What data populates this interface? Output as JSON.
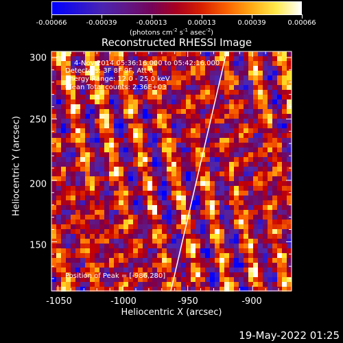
{
  "colorbar": {
    "labels": [
      "-0.00066",
      "-0.00039",
      "-0.00013",
      "0.00013",
      "0.00039",
      "0.00066"
    ],
    "units_text": "(photons cm",
    "units_sup1": "-2",
    "units_mid": " s",
    "units_sup2": "-1",
    "units_mid2": " asec",
    "units_sup3": "-2",
    "units_end": ")"
  },
  "title": "Reconstructed RHESSI Image",
  "info": {
    "time": "4-Nov-2014 05:36:16.000 to 05:42:16.000",
    "detectors": "Detectors: 3F 8F 9F, Att 0",
    "energy": "Energy Range: 12.0 - 25.0 keV",
    "clean": "Clean     Total counts: 2.36E+03",
    "peak": "Position of Peak = [-986,280]"
  },
  "xaxis": {
    "label": "Heliocentric X (arcsec)",
    "ticks": [
      "-1050",
      "-1000",
      "-950",
      "-900"
    ],
    "tick_values": [
      -1050,
      -1000,
      -950,
      -900
    ],
    "range": [
      -1055,
      -870
    ]
  },
  "yaxis": {
    "label": "Heliocentric Y (arcsec)",
    "ticks": [
      "150",
      "200",
      "250",
      "300"
    ],
    "tick_values": [
      150,
      200,
      250,
      300
    ],
    "range": [
      110,
      305
    ]
  },
  "limb_line": {
    "x": [
      -963,
      -920
    ],
    "y": [
      110,
      305
    ]
  },
  "footer_date": "19-May-2022 01:25",
  "colormap": "red-temperature (blue-purple-red-yellow-white)"
}
